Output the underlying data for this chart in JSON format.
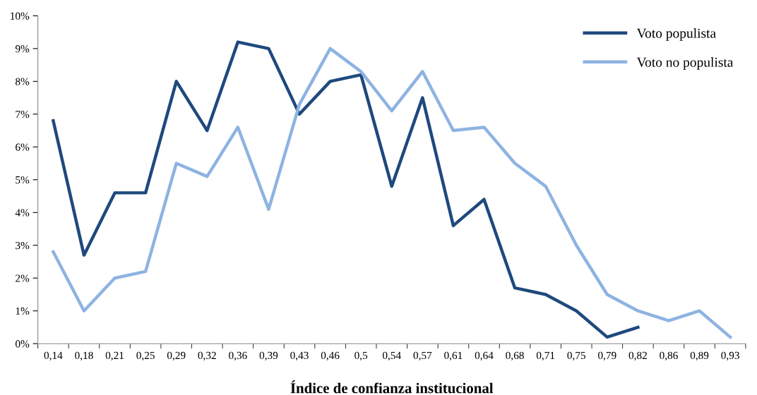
{
  "chart_data": {
    "type": "line",
    "xlabel": "Índice de confianza institucional",
    "categories": [
      "0,14",
      "0,18",
      "0,21",
      "0,25",
      "0,29",
      "0,32",
      "0,36",
      "0,39",
      "0,43",
      "0,46",
      "0,5",
      "0,54",
      "0,57",
      "0,61",
      "0,64",
      "0,68",
      "0,71",
      "0,75",
      "0,79",
      "0,82",
      "0,86",
      "0,89",
      "0,93"
    ],
    "series": [
      {
        "name": "Voto populista",
        "color": "#1f497d",
        "values": [
          6.8,
          2.7,
          4.6,
          4.6,
          8.0,
          6.5,
          9.2,
          9.0,
          7.0,
          8.0,
          8.2,
          4.8,
          7.5,
          3.6,
          4.4,
          1.7,
          1.5,
          1.0,
          0.2,
          0.5,
          null,
          null,
          null
        ]
      },
      {
        "name": "Voto no populista",
        "color": "#8db3e2",
        "values": [
          2.8,
          1.0,
          2.0,
          2.2,
          5.5,
          5.1,
          6.6,
          4.1,
          7.3,
          9.0,
          8.3,
          7.1,
          8.3,
          6.5,
          6.6,
          5.5,
          4.8,
          3.0,
          1.5,
          1.0,
          0.7,
          1.0,
          0.2
        ]
      }
    ],
    "ylim": [
      0,
      10
    ],
    "yticks": [
      {
        "value": 0,
        "label": "0%"
      },
      {
        "value": 1,
        "label": "1%"
      },
      {
        "value": 2,
        "label": "2%"
      },
      {
        "value": 3,
        "label": "3%"
      },
      {
        "value": 4,
        "label": "4%"
      },
      {
        "value": 5,
        "label": "5%"
      },
      {
        "value": 6,
        "label": "6%"
      },
      {
        "value": 7,
        "label": "7%"
      },
      {
        "value": 8,
        "label": "8%"
      },
      {
        "value": 9,
        "label": "9%"
      },
      {
        "value": 10,
        "label": "10%"
      }
    ],
    "grid": false,
    "legend": "top right",
    "marker": "none",
    "line_style": "solid"
  }
}
